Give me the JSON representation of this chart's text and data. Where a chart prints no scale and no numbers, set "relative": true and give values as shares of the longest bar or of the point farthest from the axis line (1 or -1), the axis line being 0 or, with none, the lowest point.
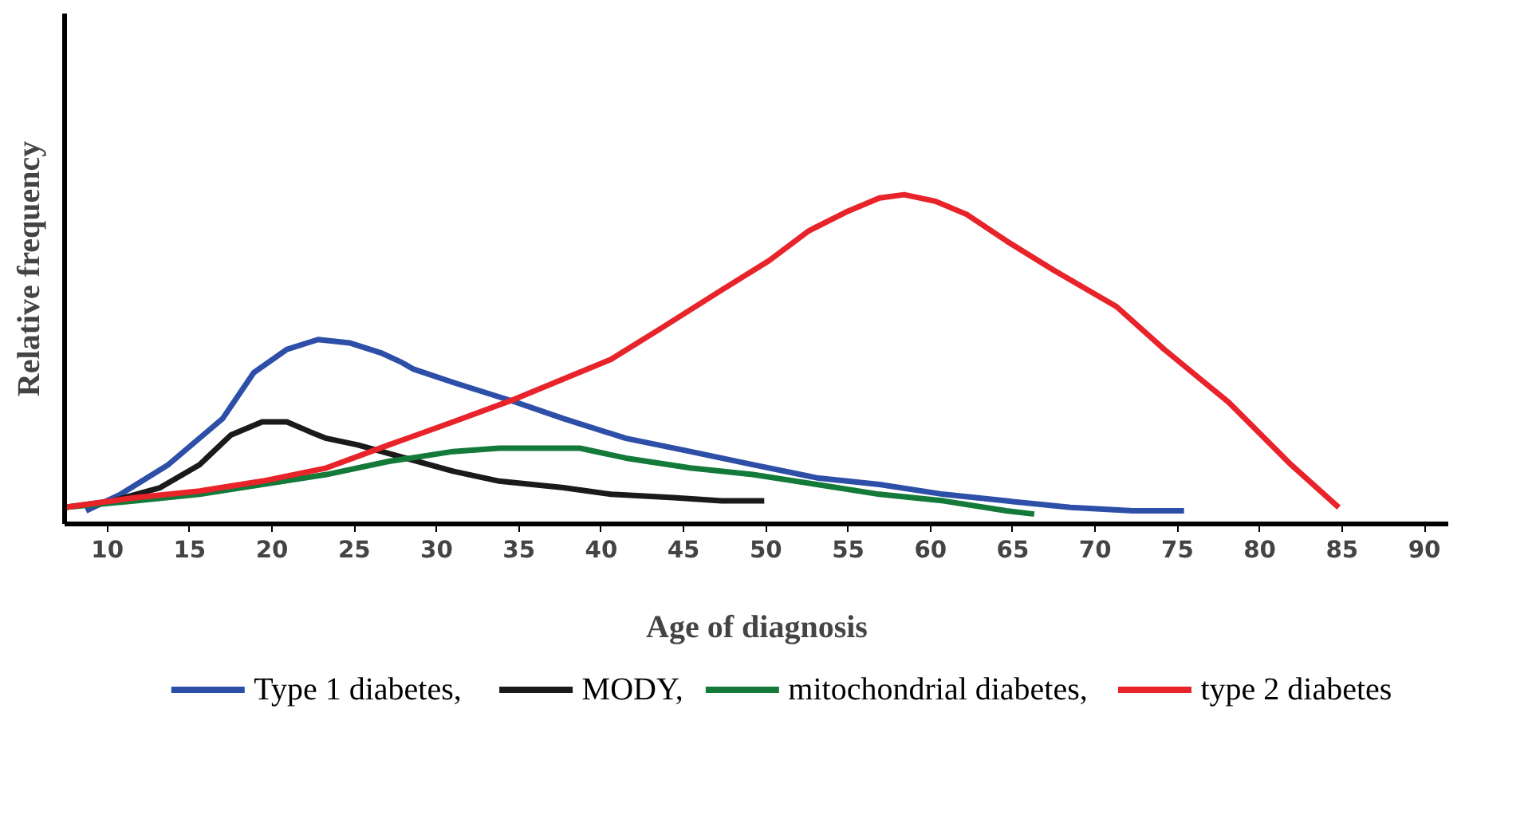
{
  "chart_data": {
    "type": "line",
    "relative": true,
    "xlabel": "Age of diagnosis",
    "ylabel": "Relative frequency",
    "xlim": [
      7.4,
      91.5
    ],
    "xticks": [
      10,
      15,
      20,
      25,
      30,
      35,
      40,
      45,
      50,
      55,
      60,
      65,
      70,
      75,
      80,
      85,
      90
    ],
    "grid": false,
    "legend": "bottom",
    "marker": "none",
    "line_style": "solid",
    "series": [
      {
        "name": "Type 1 diabetes,",
        "color": "#2e4fa8",
        "x": [
          8.7,
          10.8,
          13.7,
          17.0,
          18.9,
          20.9,
          22.8,
          24.7,
          26.6,
          27.9,
          28.6,
          31.0,
          34.8,
          37.7,
          41.5,
          45.4,
          49.2,
          53.1,
          56.9,
          60.8,
          64.6,
          68.5,
          72.3,
          75.4
        ],
        "values": [
          0.04,
          0.09,
          0.18,
          0.32,
          0.46,
          0.53,
          0.56,
          0.55,
          0.52,
          0.49,
          0.47,
          0.43,
          0.37,
          0.32,
          0.26,
          0.22,
          0.18,
          0.14,
          0.12,
          0.09,
          0.07,
          0.05,
          0.04,
          0.04
        ]
      },
      {
        "name": "MODY,",
        "color": "#1a1a1a",
        "x": [
          7.4,
          10.3,
          13.2,
          15.6,
          17.5,
          19.4,
          20.9,
          22.3,
          23.3,
          25.2,
          28.1,
          31.0,
          33.8,
          37.7,
          40.6,
          44.4,
          47.3,
          49.9
        ],
        "values": [
          0.05,
          0.07,
          0.11,
          0.18,
          0.27,
          0.31,
          0.31,
          0.28,
          0.26,
          0.24,
          0.2,
          0.16,
          0.13,
          0.11,
          0.09,
          0.08,
          0.07,
          0.07
        ]
      },
      {
        "name": "mitochondrial diabetes,",
        "color": "#137a3a",
        "x": [
          7.4,
          11.7,
          15.6,
          19.4,
          23.3,
          27.1,
          31.0,
          33.8,
          36.7,
          38.7,
          41.5,
          45.4,
          49.2,
          53.1,
          56.9,
          60.8,
          64.6,
          66.3
        ],
        "values": [
          0.05,
          0.07,
          0.09,
          0.12,
          0.15,
          0.19,
          0.22,
          0.23,
          0.23,
          0.23,
          0.2,
          0.17,
          0.15,
          0.12,
          0.09,
          0.07,
          0.04,
          0.03
        ]
      },
      {
        "name": "type 2 diabetes",
        "color": "#e8232a",
        "x": [
          7.4,
          11.7,
          15.6,
          19.4,
          23.3,
          27.1,
          31.0,
          34.8,
          37.7,
          40.6,
          43.5,
          47.3,
          50.2,
          52.6,
          55.0,
          56.9,
          58.4,
          60.3,
          62.2,
          64.6,
          67.5,
          71.3,
          74.2,
          78.1,
          81.9,
          84.8
        ],
        "values": [
          0.05,
          0.08,
          0.1,
          0.13,
          0.17,
          0.24,
          0.31,
          0.38,
          0.44,
          0.5,
          0.59,
          0.71,
          0.8,
          0.89,
          0.95,
          0.99,
          1.0,
          0.98,
          0.94,
          0.86,
          0.77,
          0.66,
          0.53,
          0.37,
          0.18,
          0.05
        ]
      }
    ]
  }
}
